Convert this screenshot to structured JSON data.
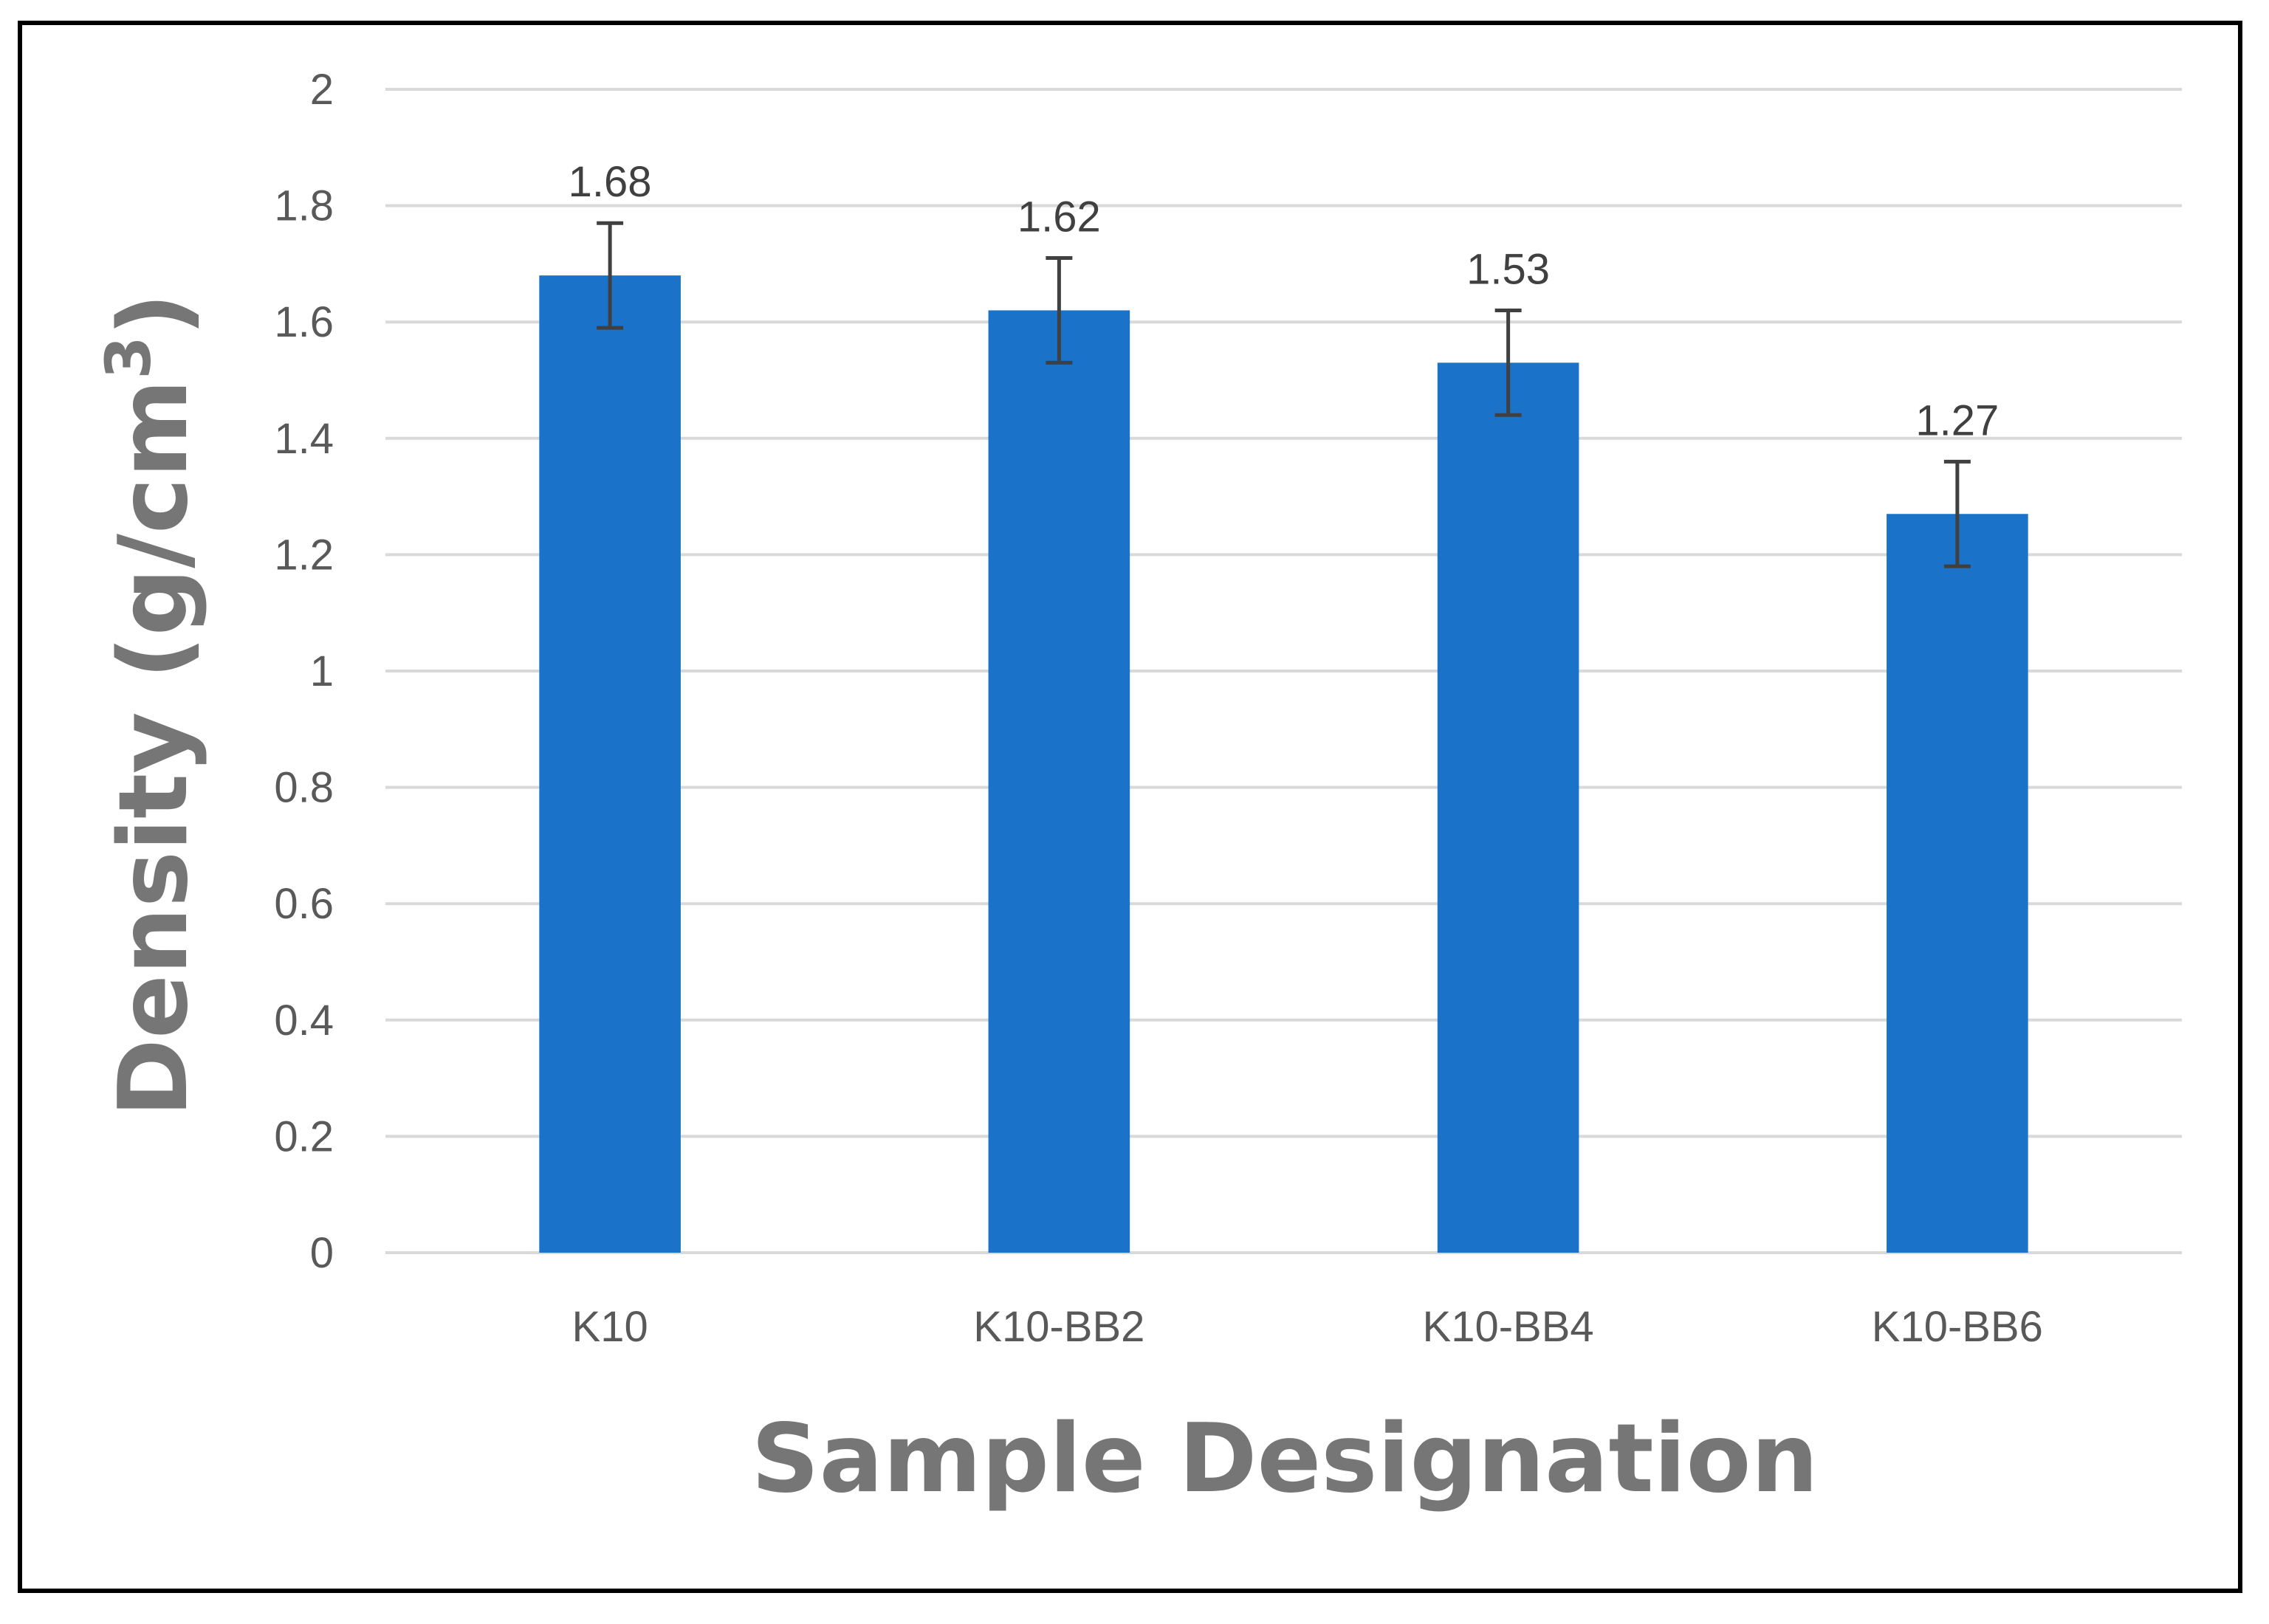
{
  "chart_data": {
    "type": "bar",
    "categories": [
      "K10",
      "K10-BB2",
      "K10-BB4",
      "K10-BB6"
    ],
    "values": [
      1.68,
      1.62,
      1.53,
      1.27
    ],
    "error": [
      0.09,
      0.09,
      0.09,
      0.09
    ],
    "data_labels": [
      "1.68",
      "1.62",
      "1.53",
      "1.27"
    ],
    "title": "",
    "xlabel": "Sample Designation",
    "ylabel_prefix": "Density (g/cm",
    "ylabel_sup": "3",
    "ylabel_suffix": ")",
    "ylim": [
      0,
      2
    ],
    "yticks": [
      0,
      0.2,
      0.4,
      0.6,
      0.8,
      1,
      1.2,
      1.4,
      1.6,
      1.8,
      2
    ],
    "ytick_labels": [
      "0",
      "0.2",
      "0.4",
      "0.6",
      "0.8",
      "1",
      "1.2",
      "1.4",
      "1.6",
      "1.8",
      "2"
    ],
    "grid": true,
    "legend": "none",
    "colors": {
      "bar": "#1A73C9",
      "error_bar": "#404040",
      "grid": "#D9D9D9"
    }
  }
}
